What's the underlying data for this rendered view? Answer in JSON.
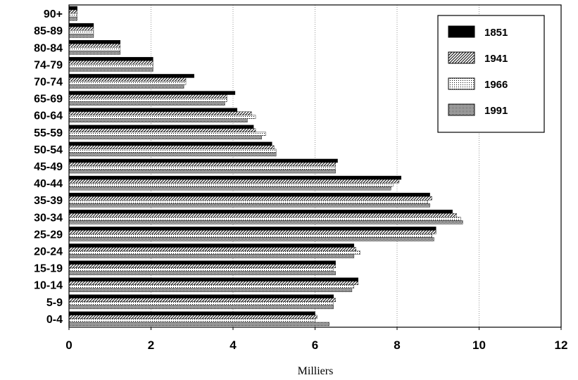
{
  "chart_data": {
    "type": "bar",
    "orientation": "horizontal",
    "categories": [
      "0-4",
      "5-9",
      "10-14",
      "15-19",
      "20-24",
      "25-29",
      "30-34",
      "35-39",
      "40-44",
      "45-49",
      "50-54",
      "55-59",
      "60-64",
      "65-69",
      "70-74",
      "74-79",
      "80-84",
      "85-89",
      "90+"
    ],
    "series": [
      {
        "name": "1851",
        "values": [
          6.0,
          6.45,
          7.05,
          6.5,
          6.95,
          8.95,
          9.35,
          8.8,
          8.1,
          6.55,
          4.95,
          4.5,
          4.1,
          4.05,
          3.05,
          2.05,
          1.25,
          0.6,
          0.2
        ]
      },
      {
        "name": "1941",
        "values": [
          6.05,
          6.5,
          7.05,
          6.5,
          7.0,
          8.95,
          9.45,
          8.85,
          8.05,
          6.5,
          5.0,
          4.55,
          4.45,
          3.85,
          2.85,
          2.05,
          1.25,
          0.6,
          0.2
        ]
      },
      {
        "name": "1966",
        "values": [
          6.0,
          6.45,
          6.95,
          6.45,
          7.1,
          8.85,
          9.55,
          8.75,
          7.9,
          6.5,
          5.05,
          4.8,
          4.55,
          3.85,
          2.85,
          2.05,
          1.25,
          0.6,
          0.2
        ]
      },
      {
        "name": "1991",
        "values": [
          6.35,
          6.45,
          6.9,
          6.5,
          6.95,
          8.9,
          9.6,
          8.8,
          7.85,
          6.5,
          5.05,
          4.7,
          4.35,
          3.8,
          2.8,
          2.05,
          1.25,
          0.6,
          0.2
        ]
      }
    ],
    "xlabel": "Milliers",
    "ylabel": "",
    "xlim": [
      0,
      12
    ],
    "xticks": [
      "0",
      "2",
      "4",
      "6",
      "8",
      "10",
      "12"
    ],
    "grid": "vertical",
    "legend_position": "top-right",
    "series_styles": [
      "solid-black",
      "diagonal-hatch",
      "light-dots",
      "dense-dots"
    ]
  }
}
